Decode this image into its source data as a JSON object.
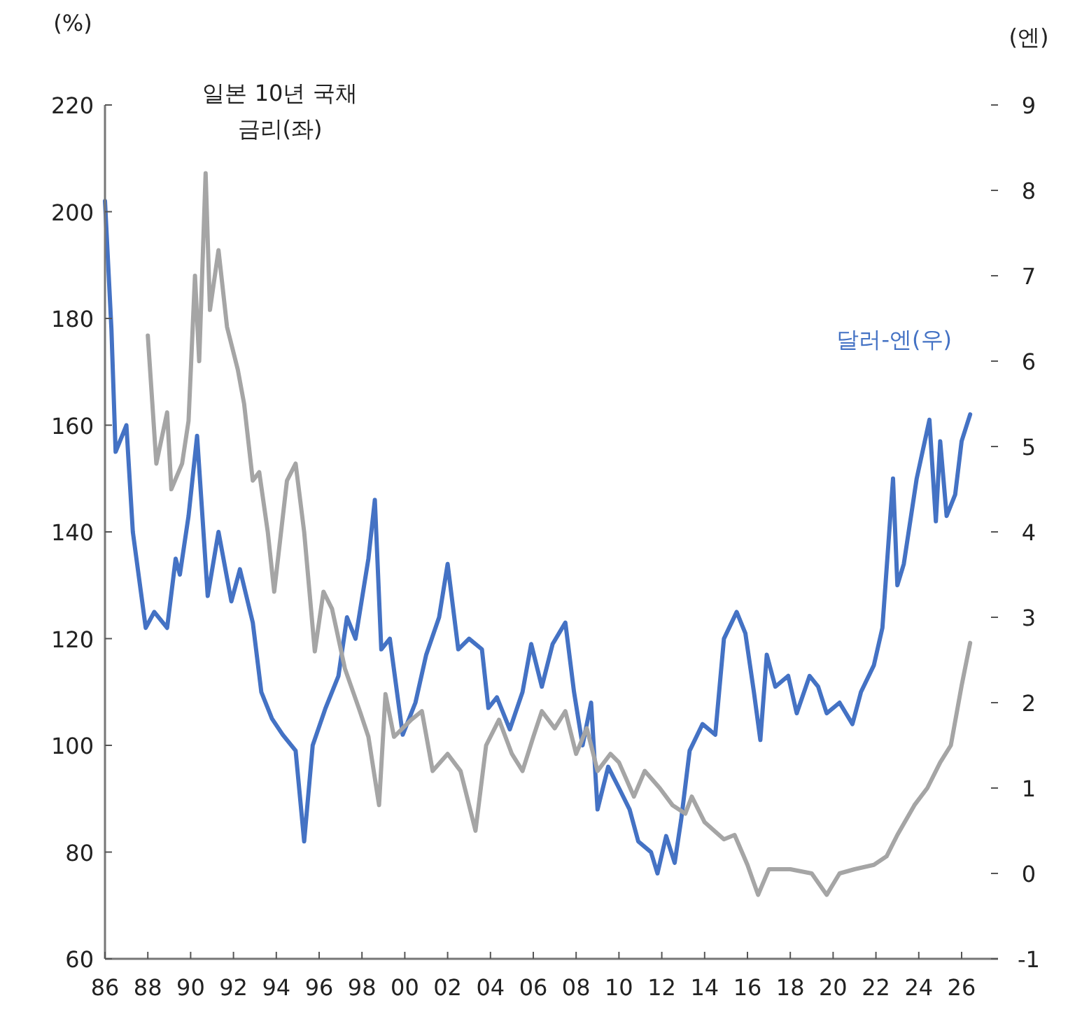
{
  "chart_data": {
    "type": "line",
    "ylabel": "(%)",
    "y2label": "(엔)",
    "xlim": [
      1986,
      2027.7
    ],
    "xticks": [
      {
        "value": 1986,
        "label": "86"
      },
      {
        "value": 1988,
        "label": "88"
      },
      {
        "value": 1990,
        "label": "90"
      },
      {
        "value": 1992,
        "label": "92"
      },
      {
        "value": 1994,
        "label": "94"
      },
      {
        "value": 1996,
        "label": "96"
      },
      {
        "value": 1998,
        "label": "98"
      },
      {
        "value": 2000,
        "label": "00"
      },
      {
        "value": 2002,
        "label": "02"
      },
      {
        "value": 2004,
        "label": "04"
      },
      {
        "value": 2006,
        "label": "06"
      },
      {
        "value": 2008,
        "label": "08"
      },
      {
        "value": 2010,
        "label": "10"
      },
      {
        "value": 2012,
        "label": "12"
      },
      {
        "value": 2014,
        "label": "14"
      },
      {
        "value": 2016,
        "label": "16"
      },
      {
        "value": 2018,
        "label": "18"
      },
      {
        "value": 2020,
        "label": "20"
      },
      {
        "value": 2022,
        "label": "22"
      },
      {
        "value": 2024,
        "label": "24"
      },
      {
        "value": 2026,
        "label": "26"
      }
    ],
    "ylim": [
      60,
      220
    ],
    "yticks": [
      60,
      80,
      100,
      120,
      140,
      160,
      180,
      200,
      220
    ],
    "y2lim": [
      -1,
      9
    ],
    "y2ticks": [
      -1,
      0,
      1,
      2,
      3,
      4,
      5,
      6,
      7,
      8,
      9
    ],
    "grid": false,
    "series": [
      {
        "name": "달러-엔(우)",
        "color": "#4472c4",
        "x": [
          1986.0,
          1986.3,
          1986.5,
          1987.0,
          1987.3,
          1987.9,
          1988.3,
          1988.9,
          1989.3,
          1989.5,
          1989.9,
          1990.3,
          1990.8,
          1991.3,
          1991.9,
          1992.3,
          1992.9,
          1993.3,
          1993.8,
          1994.3,
          1994.9,
          1995.3,
          1995.7,
          1996.3,
          1996.9,
          1997.3,
          1997.7,
          1998.3,
          1998.6,
          1998.9,
          1999.3,
          1999.9,
          2000.5,
          2001.0,
          2001.6,
          2002.0,
          2002.5,
          2003.0,
          2003.6,
          2003.9,
          2004.3,
          2004.9,
          2005.5,
          2005.9,
          2006.4,
          2006.9,
          2007.5,
          2007.9,
          2008.3,
          2008.7,
          2009.0,
          2009.5,
          2010.0,
          2010.5,
          2010.9,
          2011.5,
          2011.8,
          2012.2,
          2012.6,
          2012.9,
          2013.3,
          2013.9,
          2014.5,
          2014.9,
          2015.5,
          2015.9,
          2016.3,
          2016.6,
          2016.9,
          2017.3,
          2017.9,
          2018.3,
          2018.9,
          2019.3,
          2019.7,
          2020.3,
          2020.9,
          2021.3,
          2021.9,
          2022.3,
          2022.8,
          2023.0,
          2023.3,
          2023.9,
          2024.5,
          2024.8,
          2025.0,
          2025.3,
          2025.7,
          2026.0,
          2026.4
        ],
        "values": [
          202,
          178,
          155,
          160,
          140,
          122,
          125,
          122,
          135,
          132,
          143,
          158,
          128,
          140,
          127,
          133,
          123,
          110,
          105,
          102,
          99,
          82,
          100,
          107,
          113,
          124,
          120,
          135,
          146,
          118,
          120,
          102,
          108,
          117,
          124,
          134,
          118,
          120,
          118,
          107,
          109,
          103,
          110,
          119,
          111,
          119,
          123,
          110,
          100,
          108,
          88,
          96,
          92,
          88,
          82,
          80,
          76,
          83,
          78,
          86,
          99,
          104,
          102,
          120,
          125,
          121,
          110,
          101,
          117,
          111,
          113,
          106,
          113,
          111,
          106,
          108,
          104,
          110,
          115,
          122,
          150,
          130,
          134,
          150,
          161,
          142,
          157,
          143,
          147,
          157,
          162
        ]
      },
      {
        "name": "일본 10년 국채 금리(좌)",
        "color": "#a5a5a5",
        "axis": "y2",
        "x": [
          1988.0,
          1988.4,
          1988.9,
          1989.1,
          1989.6,
          1989.9,
          1990.2,
          1990.4,
          1990.7,
          1990.9,
          1991.3,
          1991.7,
          1992.2,
          1992.5,
          1992.9,
          1993.2,
          1993.6,
          1993.9,
          1994.5,
          1994.9,
          1995.3,
          1995.8,
          1996.2,
          1996.6,
          1997.2,
          1997.9,
          1998.3,
          1998.8,
          1999.1,
          1999.5,
          2000.3,
          2000.8,
          2001.3,
          2002.0,
          2002.6,
          2003.3,
          2003.8,
          2004.4,
          2005.0,
          2005.5,
          2006.0,
          2006.4,
          2007.0,
          2007.5,
          2008.0,
          2008.5,
          2009.0,
          2009.6,
          2010.0,
          2010.7,
          2011.2,
          2011.9,
          2012.5,
          2013.1,
          2013.4,
          2014.0,
          2014.9,
          2015.4,
          2016.0,
          2016.5,
          2017.0,
          2018.0,
          2019.0,
          2019.7,
          2020.3,
          2021.0,
          2021.9,
          2022.5,
          2023.0,
          2023.8,
          2024.4,
          2025.0,
          2025.5,
          2026.0,
          2026.4
        ],
        "values": [
          6.3,
          4.8,
          5.4,
          4.5,
          4.8,
          5.3,
          7.0,
          6.0,
          8.2,
          6.6,
          7.3,
          6.4,
          5.9,
          5.5,
          4.6,
          4.7,
          4.0,
          3.3,
          4.6,
          4.8,
          4.0,
          2.6,
          3.3,
          3.1,
          2.4,
          1.9,
          1.6,
          0.8,
          2.1,
          1.6,
          1.8,
          1.9,
          1.2,
          1.4,
          1.2,
          0.5,
          1.5,
          1.8,
          1.4,
          1.2,
          1.6,
          1.9,
          1.7,
          1.9,
          1.4,
          1.7,
          1.2,
          1.4,
          1.3,
          0.9,
          1.2,
          1.0,
          0.8,
          0.7,
          0.9,
          0.6,
          0.4,
          0.45,
          0.1,
          -0.25,
          0.05,
          0.05,
          0.0,
          -0.25,
          0.0,
          0.05,
          0.1,
          0.2,
          0.45,
          0.8,
          1.0,
          1.3,
          1.5,
          2.2,
          2.7
        ]
      }
    ]
  }
}
